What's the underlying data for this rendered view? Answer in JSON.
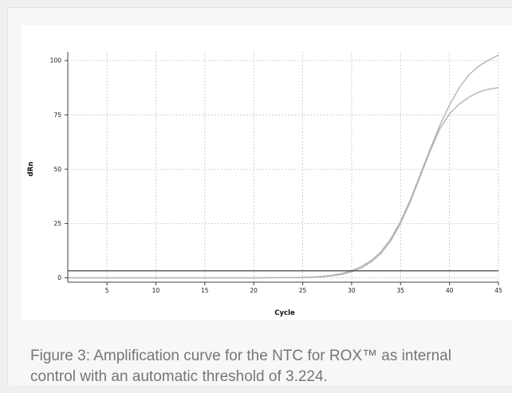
{
  "caption": "Figure 3: Amplification curve for the NTC for ROX™ as internal control with an automatic threshold of 3.224.",
  "chart_data": {
    "type": "line",
    "xlabel": "Cycle",
    "ylabel": "dRn",
    "xlim": [
      1,
      45
    ],
    "ylim": [
      -2,
      104
    ],
    "x_ticks": [
      5,
      10,
      15,
      20,
      25,
      30,
      35,
      40,
      45
    ],
    "y_ticks": [
      0,
      25,
      50,
      75,
      100
    ],
    "grid": true,
    "legend": "none",
    "colors": {
      "curves": "#b4b4b4",
      "threshold": "#404040",
      "grid": "#c4c4c4",
      "axis": "#404040"
    },
    "threshold": 3.224,
    "series": [
      {
        "x": [
          1,
          5,
          10,
          15,
          20,
          25,
          26,
          27,
          28,
          29,
          30,
          31,
          32,
          33,
          34,
          35,
          36,
          37,
          38,
          39,
          40,
          41,
          42,
          43,
          44,
          45
        ],
        "values": [
          0,
          0,
          0,
          0,
          0,
          0.2,
          0.4,
          0.7,
          1.2,
          2.0,
          3.3,
          5.2,
          8.0,
          12.0,
          18.0,
          26.0,
          36.0,
          47.5,
          59.0,
          70.0,
          79.5,
          87.5,
          93.5,
          97.5,
          100.2,
          102.5
        ]
      },
      {
        "x": [
          1,
          5,
          10,
          15,
          20,
          25,
          26,
          27,
          28,
          29,
          30,
          31,
          32,
          33,
          34,
          35,
          36,
          37,
          38,
          39,
          40,
          41,
          42,
          43,
          44,
          45
        ],
        "values": [
          0,
          0,
          0,
          0,
          0,
          0.1,
          0.3,
          0.5,
          0.9,
          1.6,
          2.8,
          4.6,
          7.3,
          11.2,
          17.0,
          25.0,
          35.0,
          46.5,
          58.0,
          68.5,
          75.5,
          80.0,
          83.2,
          85.5,
          86.8,
          87.5
        ]
      }
    ]
  }
}
